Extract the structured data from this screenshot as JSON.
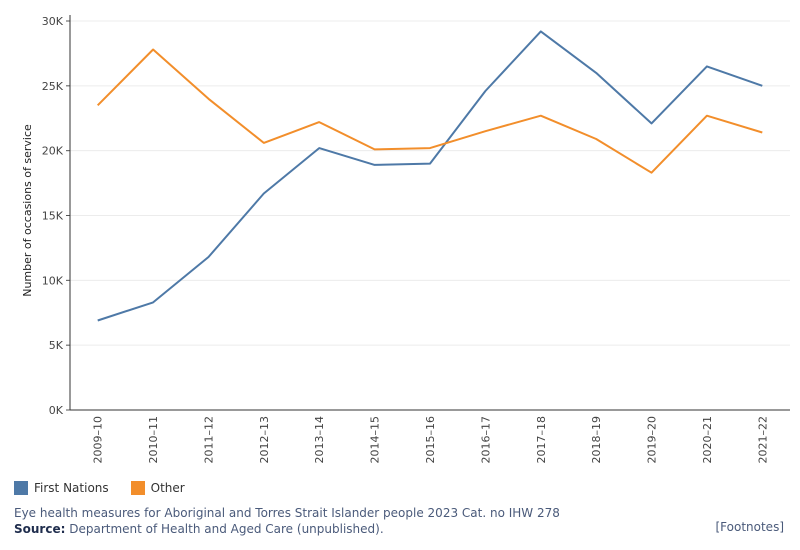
{
  "chart_data": {
    "type": "line",
    "title": "",
    "xlabel": "",
    "ylabel": "Number of occasions of service",
    "categories": [
      "2009–10",
      "2010–11",
      "2011–12",
      "2012–13",
      "2013–14",
      "2014–15",
      "2015–16",
      "2016–17",
      "2017–18",
      "2018–19",
      "2019–20",
      "2020–21",
      "2021–22"
    ],
    "ylim": [
      0,
      30000
    ],
    "yticks": [
      0,
      5000,
      10000,
      15000,
      20000,
      25000,
      30000
    ],
    "ytick_labels": [
      "0K",
      "5K",
      "10K",
      "15K",
      "20K",
      "25K",
      "30K"
    ],
    "grid": true,
    "legend_position": "bottom-left",
    "series": [
      {
        "name": "First Nations",
        "color": "#4e79a7",
        "values": [
          6900,
          8300,
          11800,
          16700,
          20200,
          18900,
          19000,
          24600,
          29200,
          26000,
          22100,
          26500,
          25000
        ]
      },
      {
        "name": "Other",
        "color": "#f28e2b",
        "values": [
          23500,
          27800,
          24000,
          20600,
          22200,
          20100,
          20200,
          21500,
          22700,
          20900,
          18300,
          22700,
          21400
        ]
      }
    ]
  },
  "footer": {
    "citation": "Eye health measures for Aboriginal and Torres Strait Islander people 2023 Cat. no IHW 278",
    "source_label": "Source:",
    "source_text": " Department of Health and Aged Care (unpublished).",
    "footnotes_link": "[Footnotes]"
  }
}
